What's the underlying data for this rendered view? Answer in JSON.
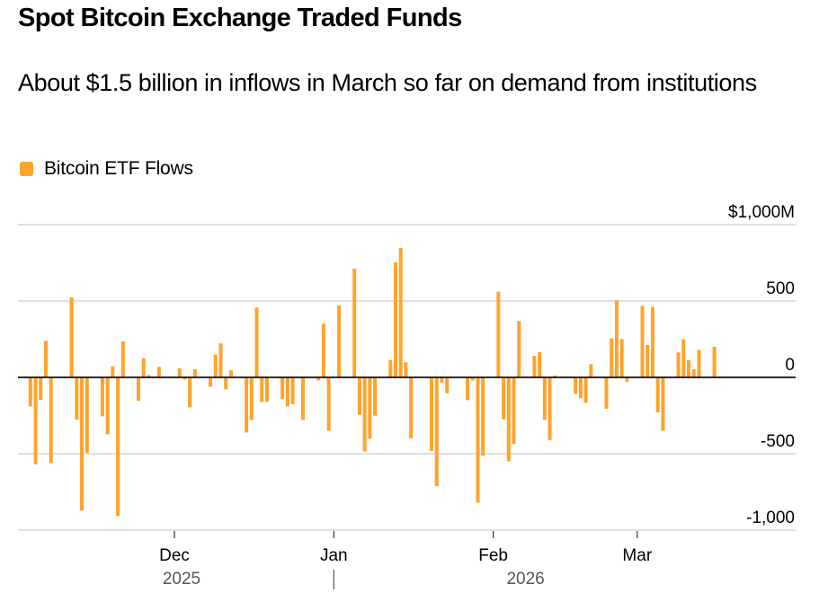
{
  "header": {
    "title": "Spot Bitcoin Exchange Traded Funds",
    "subtitle": "About $1.5 billion in inflows in March so far on demand from institutions"
  },
  "legend": {
    "items": [
      {
        "label": "Bitcoin ETF Flows",
        "color": "#FFA32B"
      }
    ]
  },
  "chart_data": {
    "type": "bar",
    "title": "Spot Bitcoin Exchange Traded Funds",
    "subtitle": "About $1.5 billion in inflows in March so far on demand from institutions",
    "xlabel": "",
    "ylabel": "",
    "units": "$M",
    "ylim": [
      -1000,
      1000
    ],
    "yticks": [
      {
        "value": 1000,
        "label": "$1,000M"
      },
      {
        "value": 500,
        "label": "500"
      },
      {
        "value": 0,
        "label": "0"
      },
      {
        "value": -500,
        "label": "-500"
      },
      {
        "value": -1000,
        "label": "-1,000"
      }
    ],
    "xticks": [
      {
        "date": "2025-12-01",
        "label": "Dec"
      },
      {
        "date": "2026-01-01",
        "label": "Jan"
      },
      {
        "date": "2026-02-01",
        "label": "Feb"
      },
      {
        "date": "2026-03-01",
        "label": "Mar"
      }
    ],
    "year_labels": [
      {
        "label": "2025",
        "anchor_date": "2025-12-01"
      },
      {
        "label": "2026",
        "anchor_date": "2026-02-01"
      }
    ],
    "year_divider_date": "2026-01-01",
    "xrange": [
      "2025-11-01",
      "2026-03-22"
    ],
    "grid": true,
    "legend_position": "top-left",
    "bar_color": "#FFA32B",
    "series": [
      {
        "name": "Bitcoin ETF Flows",
        "points": [
          {
            "date": "2025-11-03",
            "value": -190
          },
          {
            "date": "2025-11-04",
            "value": -569
          },
          {
            "date": "2025-11-05",
            "value": -147
          },
          {
            "date": "2025-11-06",
            "value": 239
          },
          {
            "date": "2025-11-07",
            "value": -561
          },
          {
            "date": "2025-11-10",
            "value": -2
          },
          {
            "date": "2025-11-11",
            "value": 523
          },
          {
            "date": "2025-11-12",
            "value": -277
          },
          {
            "date": "2025-11-13",
            "value": -872
          },
          {
            "date": "2025-11-14",
            "value": -495
          },
          {
            "date": "2025-11-17",
            "value": -255
          },
          {
            "date": "2025-11-18",
            "value": -373
          },
          {
            "date": "2025-11-19",
            "value": 73
          },
          {
            "date": "2025-11-20",
            "value": -906
          },
          {
            "date": "2025-11-21",
            "value": 235
          },
          {
            "date": "2025-11-24",
            "value": -153
          },
          {
            "date": "2025-11-25",
            "value": 125
          },
          {
            "date": "2025-11-26",
            "value": 16
          },
          {
            "date": "2025-11-28",
            "value": 69
          },
          {
            "date": "2025-12-01",
            "value": 6
          },
          {
            "date": "2025-12-02",
            "value": 59
          },
          {
            "date": "2025-12-03",
            "value": -14
          },
          {
            "date": "2025-12-04",
            "value": -196
          },
          {
            "date": "2025-12-05",
            "value": 53
          },
          {
            "date": "2025-12-08",
            "value": -61
          },
          {
            "date": "2025-12-09",
            "value": 149
          },
          {
            "date": "2025-12-10",
            "value": 222
          },
          {
            "date": "2025-12-11",
            "value": -78
          },
          {
            "date": "2025-12-12",
            "value": 47
          },
          {
            "date": "2025-12-15",
            "value": -361
          },
          {
            "date": "2025-12-16",
            "value": -278
          },
          {
            "date": "2025-12-17",
            "value": 457
          },
          {
            "date": "2025-12-18",
            "value": -161
          },
          {
            "date": "2025-12-19",
            "value": -160
          },
          {
            "date": "2025-12-22",
            "value": -143
          },
          {
            "date": "2025-12-23",
            "value": -190
          },
          {
            "date": "2025-12-24",
            "value": -176
          },
          {
            "date": "2025-12-26",
            "value": -278
          },
          {
            "date": "2025-12-29",
            "value": -20
          },
          {
            "date": "2025-12-30",
            "value": 353
          },
          {
            "date": "2025-12-31",
            "value": -349
          },
          {
            "date": "2026-01-02",
            "value": 471
          },
          {
            "date": "2026-01-05",
            "value": 712
          },
          {
            "date": "2026-01-06",
            "value": -245
          },
          {
            "date": "2026-01-07",
            "value": -486
          },
          {
            "date": "2026-01-08",
            "value": -402
          },
          {
            "date": "2026-01-09",
            "value": -251
          },
          {
            "date": "2026-01-12",
            "value": 114
          },
          {
            "date": "2026-01-13",
            "value": 753
          },
          {
            "date": "2026-01-14",
            "value": 847
          },
          {
            "date": "2026-01-15",
            "value": 98
          },
          {
            "date": "2026-01-16",
            "value": -398
          },
          {
            "date": "2026-01-20",
            "value": -482
          },
          {
            "date": "2026-01-21",
            "value": -712
          },
          {
            "date": "2026-01-22",
            "value": -33
          },
          {
            "date": "2026-01-23",
            "value": -104
          },
          {
            "date": "2026-01-26",
            "value": 4
          },
          {
            "date": "2026-01-27",
            "value": -149
          },
          {
            "date": "2026-01-28",
            "value": -20
          },
          {
            "date": "2026-01-29",
            "value": -820
          },
          {
            "date": "2026-01-30",
            "value": -514
          },
          {
            "date": "2026-02-02",
            "value": 561
          },
          {
            "date": "2026-02-03",
            "value": -275
          },
          {
            "date": "2026-02-04",
            "value": -549
          },
          {
            "date": "2026-02-05",
            "value": -437
          },
          {
            "date": "2026-02-06",
            "value": 369
          },
          {
            "date": "2026-02-09",
            "value": 141
          },
          {
            "date": "2026-02-10",
            "value": 165
          },
          {
            "date": "2026-02-11",
            "value": -278
          },
          {
            "date": "2026-02-12",
            "value": -412
          },
          {
            "date": "2026-02-13",
            "value": 12
          },
          {
            "date": "2026-02-17",
            "value": -108
          },
          {
            "date": "2026-02-18",
            "value": -137
          },
          {
            "date": "2026-02-19",
            "value": -167
          },
          {
            "date": "2026-02-20",
            "value": 86
          },
          {
            "date": "2026-02-23",
            "value": -206
          },
          {
            "date": "2026-02-24",
            "value": 255
          },
          {
            "date": "2026-02-25",
            "value": 504
          },
          {
            "date": "2026-02-26",
            "value": 251
          },
          {
            "date": "2026-02-27",
            "value": -29
          },
          {
            "date": "2026-03-02",
            "value": 467
          },
          {
            "date": "2026-03-03",
            "value": 212
          },
          {
            "date": "2026-03-04",
            "value": 461
          },
          {
            "date": "2026-03-05",
            "value": -229
          },
          {
            "date": "2026-03-06",
            "value": -349
          },
          {
            "date": "2026-03-09",
            "value": 163
          },
          {
            "date": "2026-03-10",
            "value": 249
          },
          {
            "date": "2026-03-11",
            "value": 112
          },
          {
            "date": "2026-03-12",
            "value": 53
          },
          {
            "date": "2026-03-13",
            "value": 180
          },
          {
            "date": "2026-03-16",
            "value": 200
          }
        ]
      }
    ]
  }
}
